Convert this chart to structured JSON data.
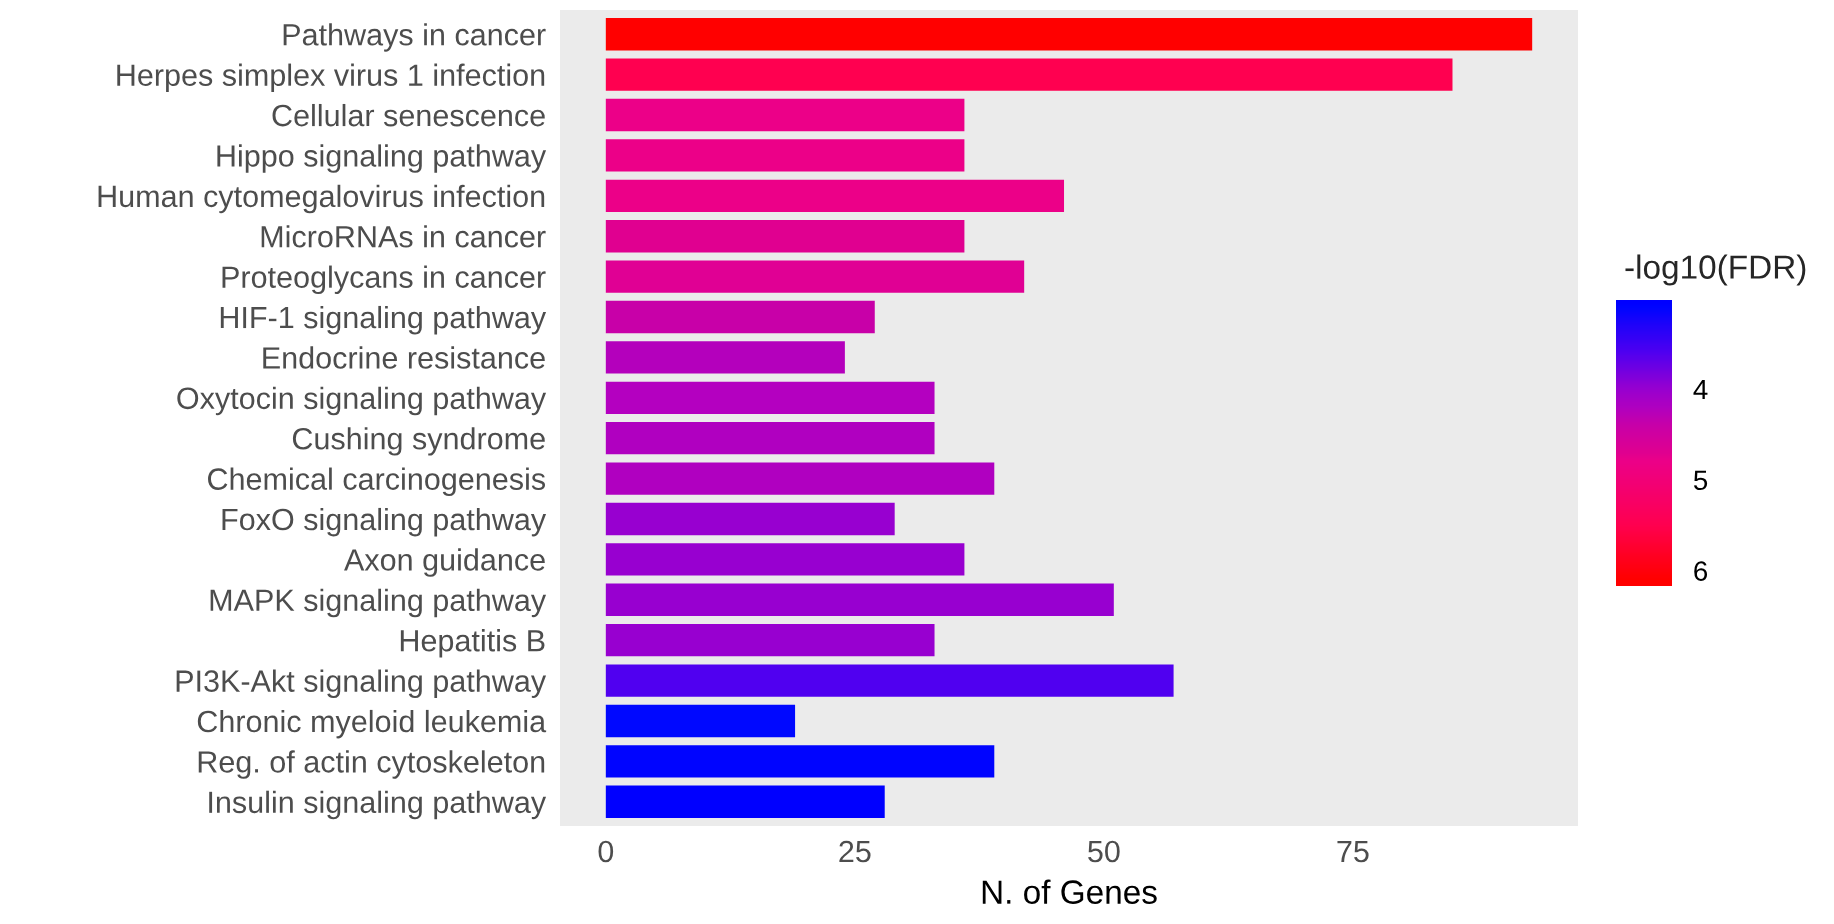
{
  "chart_data": {
    "type": "bar",
    "orientation": "horizontal",
    "xlabel": "N. of Genes",
    "clabel": "-log10(FDR)",
    "categories": [
      "Pathways in cancer",
      "Herpes simplex virus 1 infection",
      "Cellular senescence",
      "Hippo signaling pathway",
      "Human cytomegalovirus infection",
      "MicroRNAs in cancer",
      "Proteoglycans in cancer",
      "HIF-1 signaling pathway",
      "Endocrine resistance",
      "Oxytocin signaling pathway",
      "Cushing syndrome",
      "Chemical carcinogenesis",
      "FoxO signaling pathway",
      "Axon guidance",
      "MAPK signaling pathway",
      "Hepatitis B",
      "PI3K-Akt signaling pathway",
      "Chronic myeloid leukemia",
      "Reg. of actin cytoskeleton",
      "Insulin signaling pathway"
    ],
    "values": [
      93,
      85,
      36,
      36,
      46,
      36,
      42,
      27,
      24,
      33,
      33,
      39,
      29,
      36,
      51,
      33,
      57,
      19,
      39,
      28
    ],
    "cvalues": [
      6.1,
      5.5,
      4.8,
      4.8,
      4.8,
      4.7,
      4.7,
      4.4,
      4.2,
      4.2,
      4.2,
      4.2,
      4.0,
      4.0,
      4.0,
      4.0,
      3.6,
      3.1,
      3.1,
      3.05
    ],
    "colors": [
      "#ff0000",
      "#ff0050",
      "#ec0088",
      "#ec0088",
      "#ec0088",
      "#e00090",
      "#e00094",
      "#c800a8",
      "#b400bc",
      "#b400c0",
      "#b000c0",
      "#b000c0",
      "#9800d0",
      "#9800d0",
      "#9800d0",
      "#9800d0",
      "#5000f0",
      "#0008ff",
      "#0004ff",
      "#0000ff"
    ],
    "xlim": [
      -4.6,
      97.6
    ],
    "xticks": [
      0,
      25,
      50,
      75
    ],
    "clim": [
      6.17,
      3.02
    ],
    "cticks": [
      4,
      5,
      6
    ],
    "grid": false,
    "legend": false
  }
}
